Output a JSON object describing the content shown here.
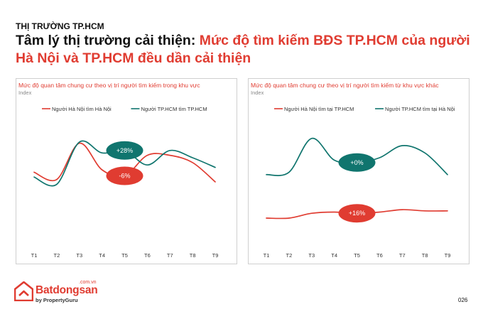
{
  "header": {
    "section": "THỊ TRƯỜNG TP.HCM",
    "headline_black": "Tâm lý thị trường cải thiện: ",
    "headline_red": "Mức độ tìm kiếm BĐS TP.HCM của người Hà Nội và TP.HCM đều dần cải thiện"
  },
  "footer": {
    "brand": "Batdongsan",
    "domain": ".com.vn",
    "by": "by PropertyGuru",
    "page": "026"
  },
  "colors": {
    "red": "#e03c31",
    "teal": "#10756e"
  },
  "chart_data": [
    {
      "type": "line",
      "title": "Mức độ quan tâm chung cư theo vị trí người tìm kiếm trong khu vực",
      "ylabel": "Index",
      "categories": [
        "T1",
        "T2",
        "T3",
        "T4",
        "T5",
        "T6",
        "T7",
        "T8",
        "T9"
      ],
      "ylim": [
        0,
        100
      ],
      "legend_position": "top",
      "series": [
        {
          "name": "Người Hà Nội tìm Hà Nội",
          "color": "#e03c31",
          "values": [
            58,
            52,
            82,
            60,
            55,
            72,
            72,
            66,
            50
          ]
        },
        {
          "name": "Người TP.HCM tìm TP.HCM",
          "color": "#10756e",
          "values": [
            54,
            48,
            83,
            74,
            76,
            64,
            76,
            70,
            62
          ]
        }
      ],
      "annotations": [
        {
          "label": "+28%",
          "series": 1,
          "at": "T5",
          "color": "#10756e"
        },
        {
          "label": "-6%",
          "series": 0,
          "at": "T5",
          "color": "#e03c31"
        }
      ]
    },
    {
      "type": "line",
      "title": "Mức độ quan tâm chung cư theo vị trí người tìm kiếm từ khu vực khác",
      "ylabel": "Index",
      "categories": [
        "T1",
        "T2",
        "T3",
        "T4",
        "T5",
        "T6",
        "T7",
        "T8",
        "T9"
      ],
      "ylim": [
        0,
        100
      ],
      "legend_position": "top",
      "series": [
        {
          "name": "Người Hà Nội tìm tại TP.HCM",
          "color": "#e03c31",
          "values": [
            20,
            20,
            24,
            25,
            24,
            25,
            27,
            26,
            26
          ]
        },
        {
          "name": "Người TP.HCM tìm tại Hà Nội",
          "color": "#10756e",
          "values": [
            56,
            58,
            86,
            68,
            66,
            70,
            80,
            74,
            56
          ]
        }
      ],
      "annotations": [
        {
          "label": "+0%",
          "series": 1,
          "at": "T5",
          "color": "#10756e"
        },
        {
          "label": "+16%",
          "series": 0,
          "at": "T5",
          "color": "#e03c31"
        }
      ]
    }
  ]
}
